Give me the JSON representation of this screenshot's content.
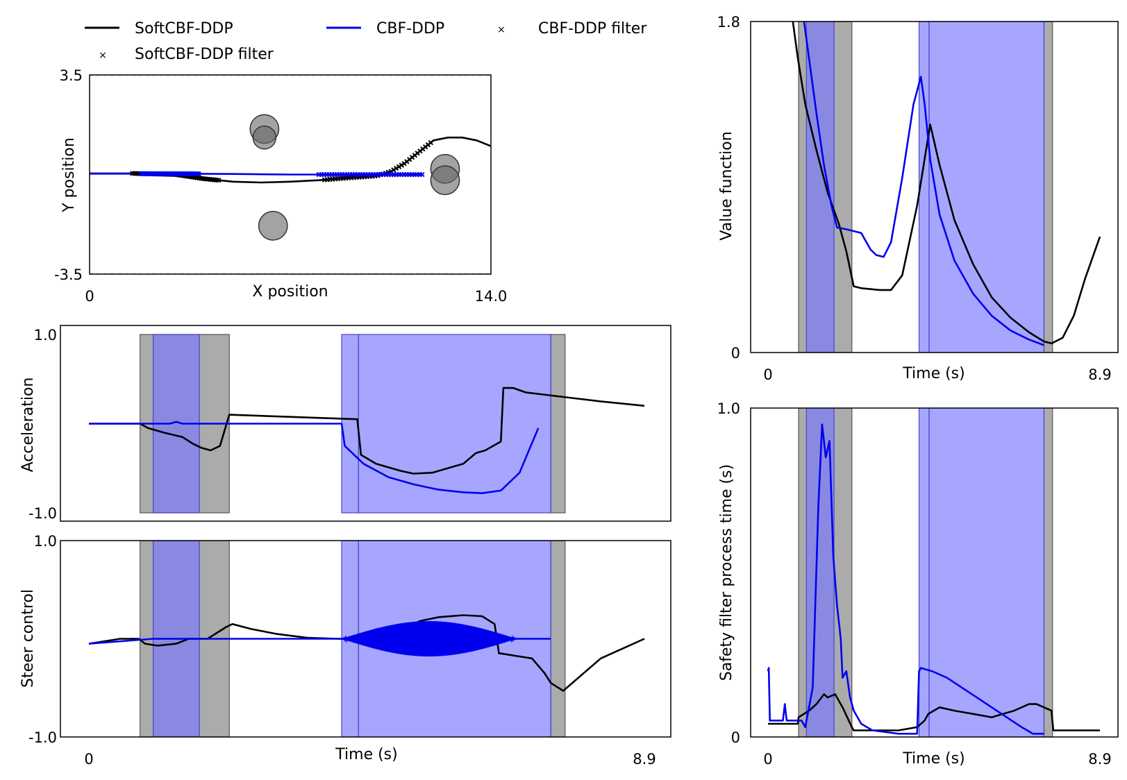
{
  "legend": {
    "items": [
      {
        "label": "SoftCBF-DDP",
        "color": "#000000",
        "marker": "line"
      },
      {
        "label": "CBF-DDP",
        "color": "#0000ee",
        "marker": "line"
      },
      {
        "label": "CBF-DDP filter",
        "color": "#3333ee",
        "marker": "x"
      },
      {
        "label": "SoftCBF-DDP filter",
        "color": "#444444",
        "marker": "x"
      }
    ]
  },
  "colors": {
    "soft": "#000000",
    "cbf": "#0000ee",
    "soft_region": "#888888",
    "cbf_region": "#7777ff",
    "obstacle": "#666666"
  },
  "chart_data": [
    {
      "id": "trajectory",
      "type": "line",
      "xlabel": "X position",
      "ylabel": "Y position",
      "xlim": [
        0,
        14.0
      ],
      "ylim": [
        -3.5,
        3.5
      ],
      "xticks": [
        "0",
        "14.0"
      ],
      "yticks": [
        "3.5",
        "-3.5"
      ],
      "boundaries_y": [
        3.5,
        -3.5
      ],
      "obstacles": [
        {
          "x": 6.1,
          "y": 1.6,
          "r": 0.5
        },
        {
          "x": 6.1,
          "y": 1.3,
          "r": 0.4
        },
        {
          "x": 12.4,
          "y": 0.2,
          "r": 0.5
        },
        {
          "x": 12.4,
          "y": -0.2,
          "r": 0.5
        },
        {
          "x": 6.4,
          "y": -1.8,
          "r": 0.5
        }
      ],
      "series": [
        {
          "name": "SoftCBF-DDP",
          "key": "soft",
          "x": [
            0,
            1.5,
            3,
            4,
            5,
            6,
            7,
            8,
            9,
            10,
            10.5,
            11,
            11.5,
            12,
            12.5,
            13,
            13.5,
            14
          ],
          "y": [
            0.04,
            0.04,
            0.0,
            -0.15,
            -0.25,
            -0.28,
            -0.25,
            -0.2,
            -0.12,
            -0.05,
            0.1,
            0.4,
            0.8,
            1.2,
            1.3,
            1.3,
            1.2,
            1.0
          ]
        },
        {
          "name": "CBF-DDP",
          "key": "cbf",
          "x": [
            0,
            1.5,
            3,
            5,
            7,
            9,
            11,
            11.6
          ],
          "y": [
            0.03,
            0.03,
            0.03,
            0.02,
            0.0,
            0.0,
            0.0,
            0.0
          ]
        }
      ],
      "filter_marks": [
        {
          "name": "SoftCBF-DDP filter",
          "key": "soft",
          "ranges": [
            [
              1.5,
              4.5
            ],
            [
              8.2,
              11.9
            ]
          ]
        },
        {
          "name": "CBF-DDP filter",
          "key": "cbf",
          "ranges": [
            [
              1.8,
              3.8
            ],
            [
              8.0,
              11.6
            ]
          ]
        }
      ]
    },
    {
      "id": "acceleration",
      "type": "line",
      "xlabel": "",
      "ylabel": "Acceleration",
      "xlim": [
        0,
        8.9
      ],
      "ylim": [
        -1.0,
        1.0
      ],
      "yticks": [
        "1.0",
        "-1.0"
      ],
      "series": [
        {
          "name": "SoftCBF-DDP",
          "key": "soft",
          "x": [
            0,
            0.82,
            0.95,
            1.2,
            1.5,
            1.68,
            1.8,
            1.95,
            2.1,
            2.25,
            4.3,
            4.36,
            4.6,
            5.0,
            5.2,
            5.5,
            6.0,
            6.2,
            6.35,
            6.6,
            6.64,
            6.8,
            7.0,
            7.6,
            8.2,
            8.9
          ],
          "y": [
            0.0,
            0.0,
            -0.05,
            -0.1,
            -0.15,
            -0.23,
            -0.27,
            -0.3,
            -0.25,
            0.1,
            0.05,
            -0.35,
            -0.45,
            -0.53,
            -0.56,
            -0.55,
            -0.45,
            -0.33,
            -0.3,
            -0.2,
            0.4,
            0.4,
            0.35,
            0.3,
            0.25,
            0.2
          ]
        },
        {
          "name": "CBF-DDP",
          "key": "cbf",
          "x": [
            0,
            1.3,
            1.4,
            1.5,
            4.05,
            4.1,
            4.4,
            4.8,
            5.2,
            5.6,
            6.0,
            6.3,
            6.6,
            6.9,
            7.05,
            7.2
          ],
          "y": [
            0.0,
            0.0,
            0.02,
            0.0,
            0.0,
            -0.25,
            -0.45,
            -0.6,
            -0.68,
            -0.74,
            -0.77,
            -0.78,
            -0.75,
            -0.55,
            -0.3,
            -0.05
          ]
        }
      ],
      "soft_regions": [
        [
          0.82,
          2.25
        ],
        [
          7.4,
          7.63
        ]
      ],
      "cbf_regions": [
        [
          1.03,
          1.77
        ],
        [
          4.05,
          4.32
        ],
        [
          4.32,
          7.4
        ]
      ]
    },
    {
      "id": "steer",
      "type": "line",
      "xlabel": "Time (s)",
      "ylabel": "Steer control",
      "xlim": [
        0,
        8.9
      ],
      "ylim": [
        -1.0,
        1.0
      ],
      "xticks": [
        "0",
        "8.9"
      ],
      "yticks": [
        "1.0",
        "-1.0"
      ],
      "series": [
        {
          "name": "SoftCBF-DDP",
          "key": "soft",
          "x": [
            0,
            0.5,
            0.8,
            0.9,
            1.1,
            1.4,
            1.6,
            1.9,
            2.2,
            2.3,
            2.6,
            3.0,
            3.5,
            4.0,
            4.6,
            5.0,
            5.3,
            5.6,
            6.0,
            6.3,
            6.5,
            6.57,
            6.6,
            7.1,
            7.3,
            7.4,
            7.6,
            8.2,
            8.9
          ],
          "y": [
            -0.05,
            0.0,
            0.0,
            -0.05,
            -0.07,
            -0.05,
            0.0,
            0.0,
            0.12,
            0.15,
            0.1,
            0.05,
            0.01,
            0.0,
            0.0,
            0.08,
            0.18,
            0.22,
            0.24,
            0.23,
            0.15,
            -0.15,
            -0.15,
            -0.2,
            -0.35,
            -0.45,
            -0.53,
            -0.2,
            0.0
          ]
        },
        {
          "name": "CBF-DDP",
          "key": "cbf",
          "x": [
            0,
            1.03,
            1.3,
            1.6,
            1.77,
            2.5,
            4.05,
            6.85,
            7.4
          ],
          "y": [
            -0.05,
            0.0,
            0.0,
            0.0,
            0.0,
            0.0,
            0.0,
            0.0,
            0.0
          ]
        }
      ],
      "cbf_oscillation": {
        "x_range": [
          4.05,
          6.85
        ],
        "max_amplitude": 0.18
      },
      "soft_regions": [
        [
          0.82,
          2.25
        ],
        [
          7.4,
          7.63
        ]
      ],
      "cbf_regions": [
        [
          1.03,
          1.77
        ],
        [
          4.05,
          4.32
        ],
        [
          4.32,
          7.4
        ]
      ]
    },
    {
      "id": "value",
      "type": "line",
      "xlabel": "Time (s)",
      "ylabel": "Value function",
      "xlim": [
        0,
        8.9
      ],
      "ylim": [
        0,
        1.8
      ],
      "xticks": [
        "0",
        "8.9"
      ],
      "yticks": [
        "1.8",
        "0"
      ],
      "series": [
        {
          "name": "SoftCBF-DDP",
          "key": "soft",
          "x": [
            0.6,
            0.8,
            1.0,
            1.3,
            1.6,
            1.9,
            2.1,
            2.3,
            2.5,
            3.0,
            3.3,
            3.6,
            4.0,
            4.35,
            4.6,
            5.0,
            5.5,
            6.0,
            6.5,
            7.0,
            7.4,
            7.6,
            7.9,
            8.2,
            8.5,
            8.9
          ],
          "y": [
            1.9,
            1.6,
            1.35,
            1.1,
            0.87,
            0.7,
            0.55,
            0.36,
            0.35,
            0.34,
            0.34,
            0.42,
            0.8,
            1.24,
            1.02,
            0.72,
            0.48,
            0.3,
            0.19,
            0.11,
            0.06,
            0.05,
            0.08,
            0.2,
            0.4,
            0.63
          ]
        },
        {
          "name": "CBF-DDP",
          "key": "cbf",
          "x": [
            0.9,
            1.1,
            1.3,
            1.5,
            1.7,
            1.85,
            2.1,
            2.5,
            2.75,
            2.9,
            3.1,
            3.3,
            3.6,
            3.9,
            4.1,
            4.2,
            4.35,
            4.6,
            5.0,
            5.5,
            6.0,
            6.5,
            7.0,
            7.4
          ],
          "y": [
            1.9,
            1.6,
            1.3,
            1.02,
            0.8,
            0.68,
            0.67,
            0.65,
            0.56,
            0.53,
            0.52,
            0.6,
            0.95,
            1.35,
            1.5,
            1.35,
            1.05,
            0.75,
            0.5,
            0.32,
            0.2,
            0.12,
            0.07,
            0.04
          ]
        }
      ],
      "soft_regions": [
        [
          0.82,
          2.25
        ],
        [
          7.4,
          7.63
        ]
      ],
      "cbf_regions": [
        [
          1.03,
          1.77
        ],
        [
          4.05,
          4.32
        ],
        [
          4.32,
          7.4
        ]
      ]
    },
    {
      "id": "process_time",
      "type": "line",
      "xlabel": "Time (s)",
      "ylabel": "Safety filter process time (s)",
      "xlim": [
        0,
        8.9
      ],
      "ylim": [
        0,
        1.0
      ],
      "xticks": [
        "0",
        "8.9"
      ],
      "yticks": [
        "1.0",
        "0"
      ],
      "series": [
        {
          "name": "SoftCBF-DDP",
          "key": "soft",
          "x": [
            0,
            0.8,
            0.82,
            1.1,
            1.3,
            1.5,
            1.6,
            1.8,
            1.95,
            2.0,
            2.25,
            2.3,
            3.5,
            4.0,
            4.2,
            4.3,
            4.6,
            5.0,
            5.5,
            6.0,
            6.3,
            6.6,
            6.8,
            7.0,
            7.2,
            7.4,
            7.6,
            7.65,
            8.2,
            8.9
          ],
          "y": [
            0.04,
            0.04,
            0.06,
            0.08,
            0.1,
            0.13,
            0.12,
            0.13,
            0.1,
            0.09,
            0.03,
            0.02,
            0.02,
            0.03,
            0.05,
            0.07,
            0.09,
            0.08,
            0.07,
            0.06,
            0.07,
            0.08,
            0.09,
            0.1,
            0.1,
            0.09,
            0.08,
            0.02,
            0.02,
            0.02
          ]
        },
        {
          "name": "CBF-DDP",
          "key": "cbf",
          "x": [
            0,
            0.02,
            0.05,
            0.4,
            0.45,
            0.5,
            0.9,
            1.0,
            1.2,
            1.35,
            1.45,
            1.55,
            1.65,
            1.75,
            1.85,
            1.95,
            2.0,
            2.1,
            2.2,
            2.3,
            2.5,
            2.8,
            3.5,
            4.0,
            4.05,
            4.1,
            4.4,
            4.8,
            5.2,
            5.6,
            6.0,
            6.4,
            6.8,
            7.1,
            7.4
          ],
          "y": [
            0.2,
            0.21,
            0.05,
            0.05,
            0.1,
            0.05,
            0.05,
            0.03,
            0.15,
            0.7,
            0.95,
            0.85,
            0.9,
            0.55,
            0.4,
            0.3,
            0.18,
            0.2,
            0.12,
            0.08,
            0.04,
            0.02,
            0.01,
            0.01,
            0.2,
            0.21,
            0.2,
            0.18,
            0.15,
            0.12,
            0.09,
            0.06,
            0.03,
            0.01,
            0.01
          ]
        }
      ],
      "soft_regions": [
        [
          0.82,
          2.25
        ],
        [
          7.4,
          7.63
        ]
      ],
      "cbf_regions": [
        [
          1.03,
          1.77
        ],
        [
          4.05,
          4.32
        ],
        [
          4.32,
          7.4
        ]
      ]
    }
  ]
}
